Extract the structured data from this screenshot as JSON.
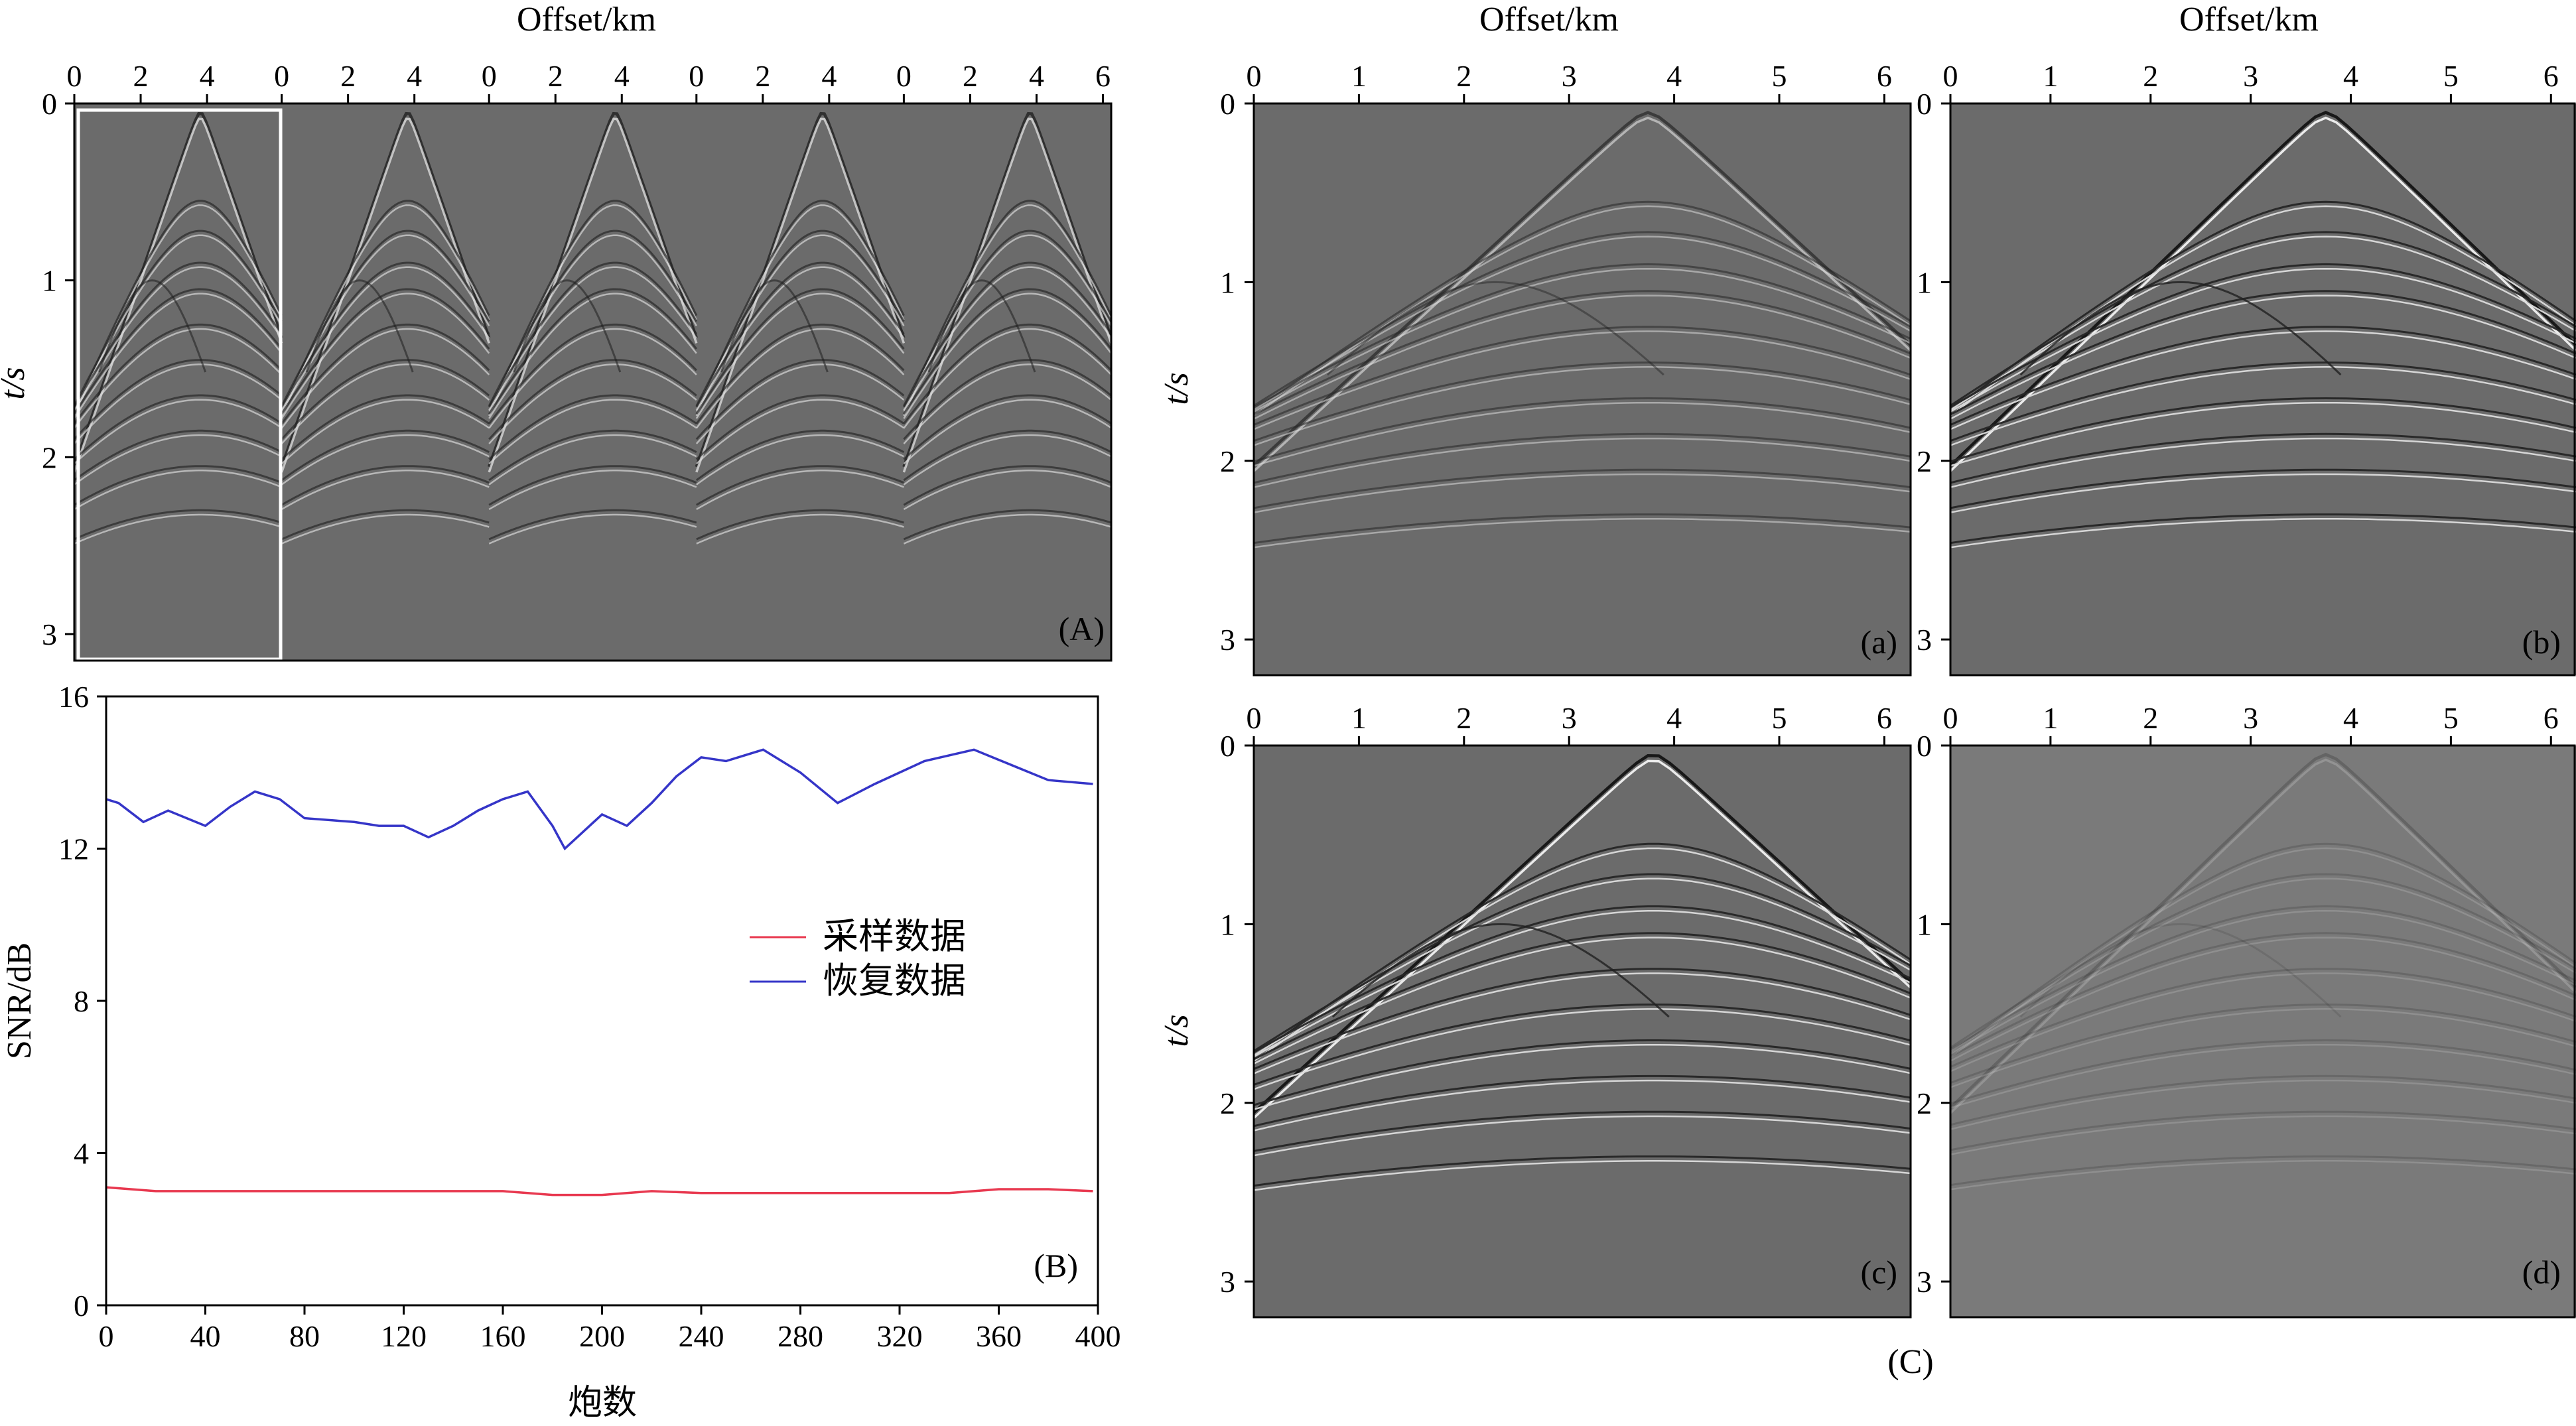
{
  "figure_label": "(C)",
  "chart_data": [
    {
      "type": "heatmap",
      "panel_label": "(A)",
      "xlabel": "Offset/km",
      "ylabel": "t/s",
      "x_tick_labels": [
        "0",
        "2",
        "4",
        "0",
        "2",
        "4",
        "0",
        "2",
        "4",
        "0",
        "2",
        "4",
        "0",
        "2",
        "4",
        "6"
      ],
      "y_ticks": [
        0,
        1,
        2,
        3
      ],
      "ylim": [
        0,
        3.15
      ],
      "shot_count": 5,
      "apex_offset_km": 3.8,
      "highlighted_shot": 1,
      "colors": {
        "background": "#6b6b6b",
        "highlight_box": "#ffffff"
      }
    },
    {
      "type": "line",
      "panel_label": "(B)",
      "xlabel": "炮数",
      "ylabel": "SNR/dB",
      "xlim": [
        0,
        400
      ],
      "ylim": [
        0,
        16
      ],
      "x_ticks": [
        0,
        40,
        80,
        120,
        160,
        200,
        240,
        280,
        320,
        360,
        400
      ],
      "y_ticks": [
        0,
        4,
        8,
        12,
        16
      ],
      "legend_position": "middle-right",
      "series": [
        {
          "name": "采样数据",
          "color": "#e8384f",
          "x": [
            0,
            20,
            40,
            60,
            80,
            100,
            120,
            140,
            160,
            170,
            180,
            200,
            220,
            240,
            260,
            280,
            300,
            320,
            340,
            360,
            380,
            398
          ],
          "y": [
            3.1,
            3.0,
            3.0,
            3.0,
            3.0,
            3.0,
            3.0,
            3.0,
            3.0,
            2.95,
            2.9,
            2.9,
            3.0,
            2.95,
            2.95,
            2.95,
            2.95,
            2.95,
            2.95,
            3.05,
            3.05,
            3.0
          ]
        },
        {
          "name": "恢复数据",
          "color": "#3535c8",
          "x": [
            0,
            5,
            15,
            25,
            40,
            50,
            60,
            70,
            80,
            100,
            110,
            120,
            130,
            140,
            150,
            160,
            170,
            180,
            185,
            200,
            210,
            220,
            230,
            240,
            250,
            265,
            280,
            295,
            310,
            330,
            350,
            365,
            380,
            398
          ],
          "y": [
            13.3,
            13.2,
            12.7,
            13.0,
            12.6,
            13.1,
            13.5,
            13.3,
            12.8,
            12.7,
            12.6,
            12.6,
            12.3,
            12.6,
            13.0,
            13.3,
            13.5,
            12.6,
            12.0,
            12.9,
            12.6,
            13.2,
            13.9,
            14.4,
            14.3,
            14.6,
            14.0,
            13.2,
            13.7,
            14.3,
            14.6,
            14.2,
            13.8,
            13.7
          ]
        }
      ]
    },
    {
      "type": "heatmap",
      "panel_label": "(a)",
      "xlabel": "Offset/km",
      "ylabel": "t/s",
      "xlim": [
        0,
        6.25
      ],
      "ylim": [
        0,
        3.2
      ],
      "x_ticks": [
        0,
        1,
        2,
        3,
        4,
        5,
        6
      ],
      "y_ticks": [
        0,
        1,
        2,
        3
      ],
      "apex_offset_km": 3.75,
      "amplitude": 0.55,
      "colors": {
        "background": "#6b6b6b"
      }
    },
    {
      "type": "heatmap",
      "panel_label": "(b)",
      "xlabel": "Offset/km",
      "ylabel": "",
      "xlim": [
        0,
        6.25
      ],
      "ylim": [
        0,
        3.2
      ],
      "x_ticks": [
        0,
        1,
        2,
        3,
        4,
        5,
        6
      ],
      "y_ticks": [
        0,
        1,
        2,
        3
      ],
      "apex_offset_km": 3.75,
      "amplitude": 1.0,
      "colors": {
        "background": "#6b6b6b"
      }
    },
    {
      "type": "heatmap",
      "panel_label": "(c)",
      "xlabel": "",
      "ylabel": "t/s",
      "xlim": [
        0,
        6.25
      ],
      "ylim": [
        0,
        3.2
      ],
      "x_ticks": [
        0,
        1,
        2,
        3,
        4,
        5,
        6
      ],
      "y_ticks": [
        0,
        1,
        2,
        3
      ],
      "apex_offset_km": 3.8,
      "amplitude": 1.0,
      "colors": {
        "background": "#6b6b6b"
      }
    },
    {
      "type": "heatmap",
      "panel_label": "(d)",
      "xlabel": "",
      "ylabel": "",
      "xlim": [
        0,
        6.25
      ],
      "ylim": [
        0,
        3.2
      ],
      "x_ticks": [
        0,
        1,
        2,
        3,
        4,
        5,
        6
      ],
      "y_ticks": [
        0,
        1,
        2,
        3
      ],
      "apex_offset_km": 3.75,
      "amplitude": 0.18,
      "colors": {
        "background": "#7a7a7a"
      }
    }
  ]
}
